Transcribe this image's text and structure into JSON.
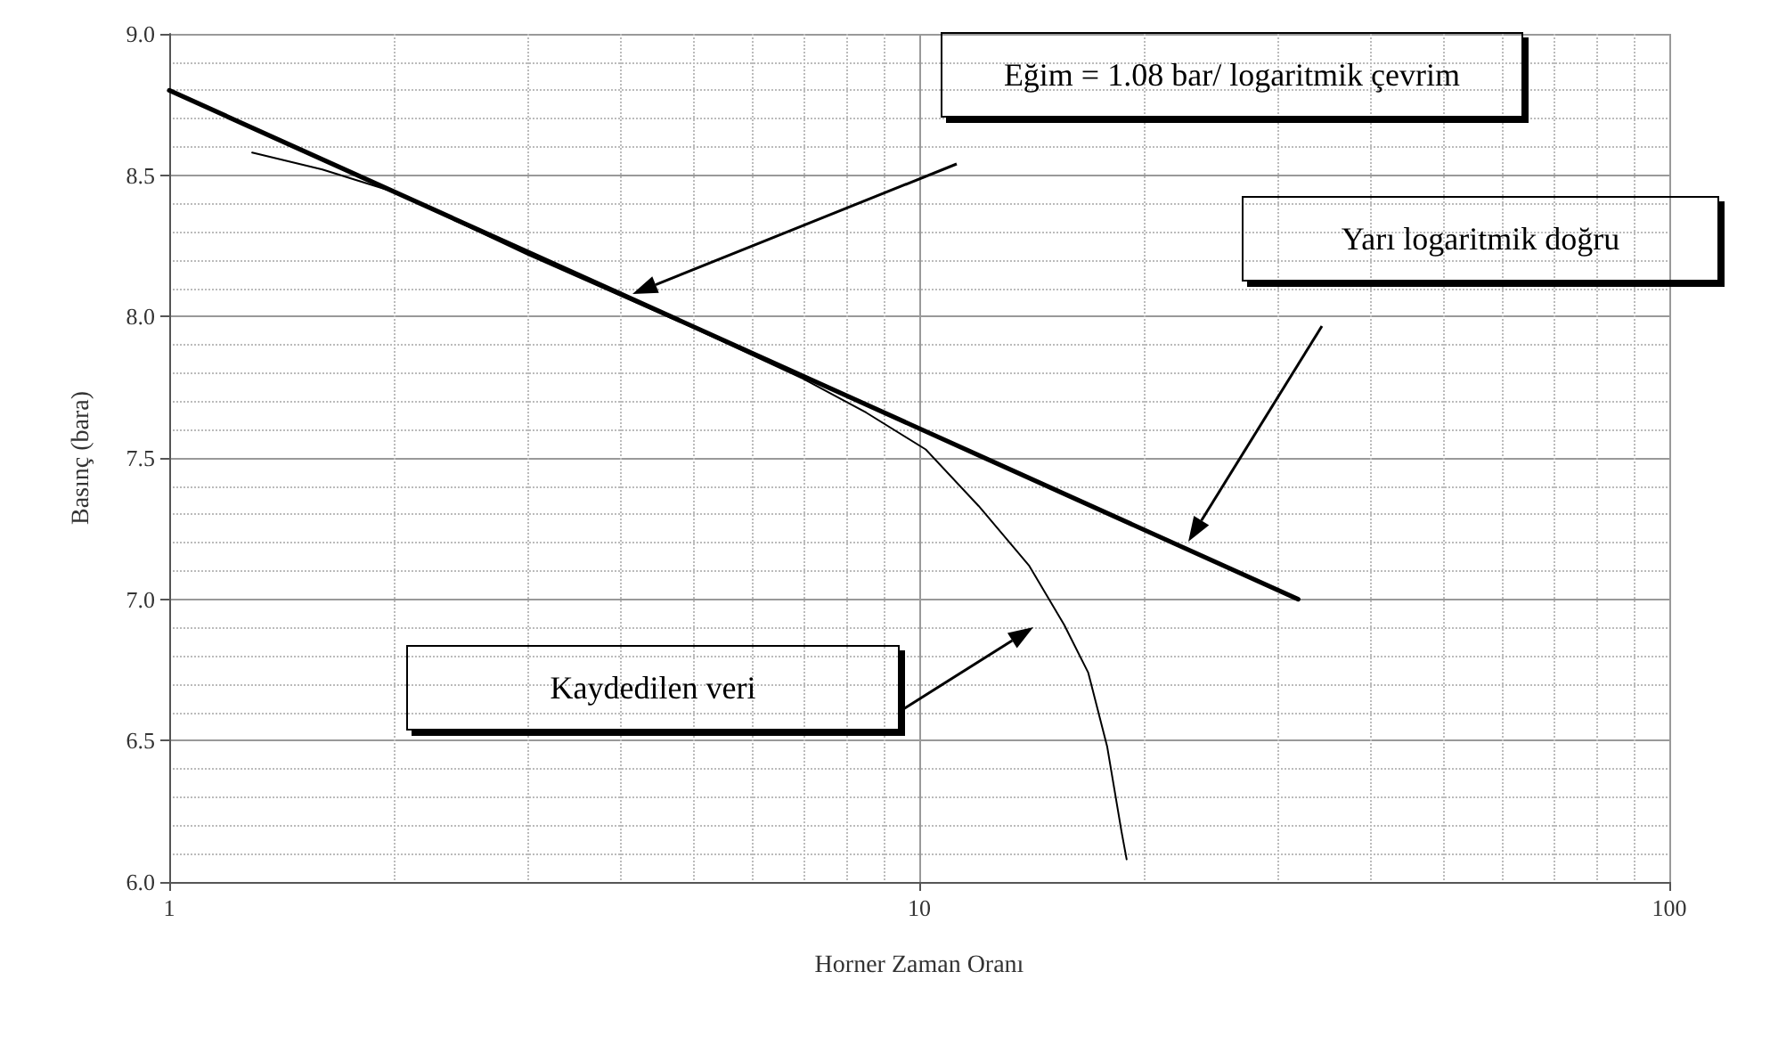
{
  "chart_data": {
    "type": "line",
    "xlabel": "Horner Zaman Oranı",
    "ylabel": "Basınç (bara)",
    "log": "x",
    "xlim": [
      1,
      100
    ],
    "xticks": [
      1,
      10,
      100
    ],
    "ylim": [
      6.0,
      9.0
    ],
    "yticks": [
      {
        "value": 6.0,
        "label": "6.0"
      },
      6.5,
      {
        "value": 7.0,
        "label": "7.0"
      },
      7.5,
      {
        "value": 8.0,
        "label": "8.0"
      },
      8.5,
      {
        "value": 9.0,
        "label": "9.0"
      }
    ],
    "grid": true,
    "marker": "none",
    "line_style": "solid",
    "series": [
      {
        "color": "#000000",
        "x": [
          1,
          32
        ],
        "values": [
          8.8,
          7.0
        ]
      },
      {
        "color": "#000000",
        "x": [
          1.29,
          1.6,
          2,
          3,
          5,
          7,
          8.5,
          10.2,
          12,
          14,
          15.6,
          16.8,
          17.8,
          18.6,
          18.9
        ],
        "values": [
          8.58,
          8.52,
          8.44,
          8.22,
          7.96,
          7.78,
          7.66,
          7.53,
          7.33,
          7.12,
          6.91,
          6.74,
          6.48,
          6.18,
          6.08
        ]
      }
    ],
    "annotations": [
      "Eğim = 1.08 bar/ logaritmik çevrim",
      "Yarı logaritmik doğru",
      "Kaydedilen veri"
    ]
  }
}
